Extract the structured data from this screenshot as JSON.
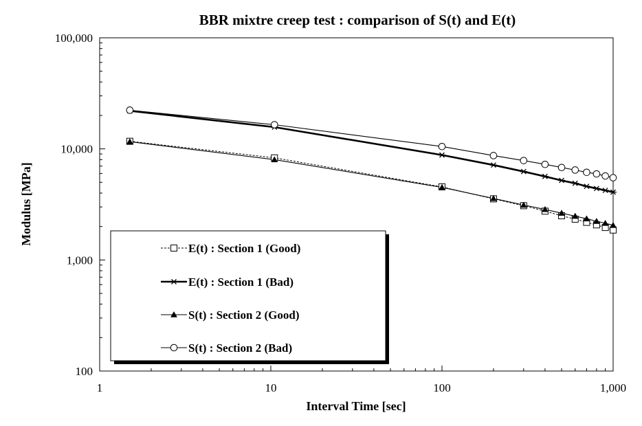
{
  "chart_data": {
    "type": "line",
    "title": "BBR mixtre creep test : comparison of S(t) and E(t)",
    "xlabel": "Interval Time [sec]",
    "ylabel": "Modulus [MPa]",
    "xscale": "log",
    "yscale": "log",
    "xlim": [
      1,
      1000
    ],
    "ylim": [
      100,
      100000
    ],
    "x_ticks": [
      1,
      10,
      100,
      1000
    ],
    "x_tick_labels": [
      "1",
      "10",
      "100",
      "1,000"
    ],
    "y_ticks": [
      100,
      1000,
      10000,
      100000
    ],
    "y_tick_labels": [
      "100",
      "1,000",
      "10,000",
      "100,000"
    ],
    "grid": false,
    "legend_position": "bottom-left",
    "series": [
      {
        "name": "E(t) : Section 1 (Good)",
        "marker": "square-open",
        "line": "dashed",
        "color": "#000000",
        "x": [
          1.5,
          10.5,
          100,
          200,
          300,
          400,
          500,
          600,
          700,
          800,
          900,
          1000
        ],
        "y": [
          11700,
          8300,
          4550,
          3550,
          3080,
          2750,
          2500,
          2330,
          2180,
          2070,
          1960,
          1860
        ]
      },
      {
        "name": "E(t) : Section 1 (Bad)",
        "marker": "star",
        "line": "solid-thick",
        "color": "#000000",
        "x": [
          1.5,
          10.5,
          100,
          200,
          300,
          400,
          500,
          600,
          700,
          800,
          900,
          1000
        ],
        "y": [
          22000,
          15700,
          8800,
          7150,
          6250,
          5650,
          5200,
          4900,
          4600,
          4400,
          4230,
          4080
        ]
      },
      {
        "name": "S(t) : Section 2 (Good)",
        "marker": "triangle-filled",
        "line": "solid",
        "color": "#000000",
        "x": [
          1.5,
          10.5,
          100,
          200,
          300,
          400,
          500,
          600,
          700,
          800,
          900,
          1000
        ],
        "y": [
          11600,
          8000,
          4500,
          3580,
          3120,
          2850,
          2640,
          2480,
          2350,
          2230,
          2140,
          2050
        ]
      },
      {
        "name": "S(t) : Section 2 (Bad)",
        "marker": "circle-open",
        "line": "solid",
        "color": "#000000",
        "x": [
          1.5,
          10.5,
          100,
          200,
          300,
          400,
          500,
          600,
          700,
          800,
          900,
          1000
        ],
        "y": [
          22300,
          16500,
          10500,
          8700,
          7850,
          7250,
          6800,
          6450,
          6150,
          5950,
          5700,
          5500
        ]
      }
    ]
  }
}
